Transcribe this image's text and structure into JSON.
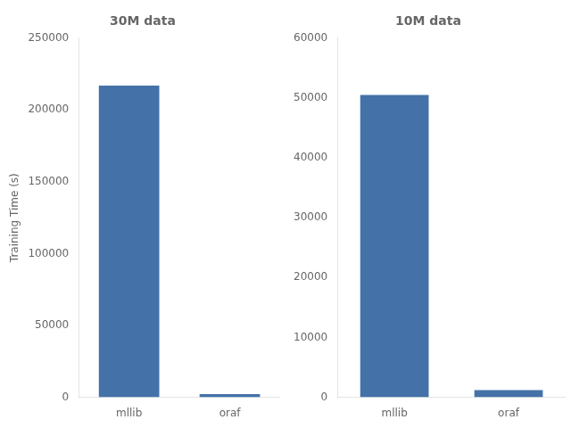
{
  "chart_data": [
    {
      "type": "bar",
      "title": "30M data",
      "ylabel": "Training Time (s)",
      "categories": [
        "mllib",
        "oraf"
      ],
      "values": [
        217000,
        2200
      ],
      "color": "#4472a8",
      "ylim": [
        0,
        250000
      ],
      "yticks": [
        0,
        50000,
        100000,
        150000,
        200000,
        250000
      ],
      "grid": false
    },
    {
      "type": "bar",
      "title": "10M data",
      "categories": [
        "mllib",
        "oraf"
      ],
      "values": [
        50500,
        1200
      ],
      "color": "#4472a8",
      "ylim": [
        0,
        60000
      ],
      "yticks": [
        0,
        10000,
        20000,
        30000,
        40000,
        50000,
        60000
      ],
      "grid": false
    }
  ]
}
